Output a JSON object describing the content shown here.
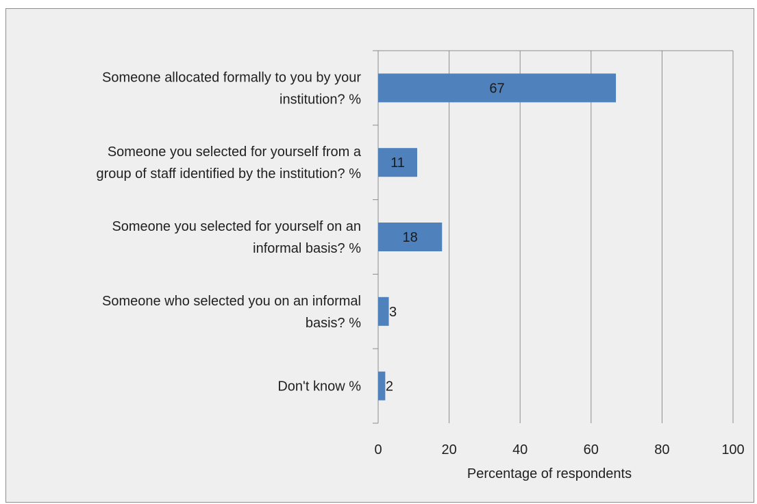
{
  "chart_data": {
    "type": "bar",
    "orientation": "horizontal",
    "categories": [
      [
        "Someone allocated formally to you by your",
        "institution? %"
      ],
      [
        "Someone you selected for yourself from a",
        "group of staff identified by the institution? %"
      ],
      [
        "Someone you selected for yourself on an",
        "informal basis? %"
      ],
      [
        "Someone who selected you on an informal",
        "basis? %"
      ],
      [
        "Don't know %"
      ]
    ],
    "values": [
      67,
      11,
      18,
      3,
      2
    ],
    "data_labels": [
      "67",
      "11",
      "18",
      "3",
      "2"
    ],
    "xlabel": "Percentage of respondents",
    "ylabel": "",
    "xlim": [
      0,
      100
    ],
    "x_ticks": [
      "0",
      "20",
      "40",
      "60",
      "80",
      "100"
    ],
    "grid": "vertical",
    "legend": "none",
    "bar_color": "#4f81bd",
    "grid_color": "#8c8c8c",
    "background_color": "#efefef"
  }
}
